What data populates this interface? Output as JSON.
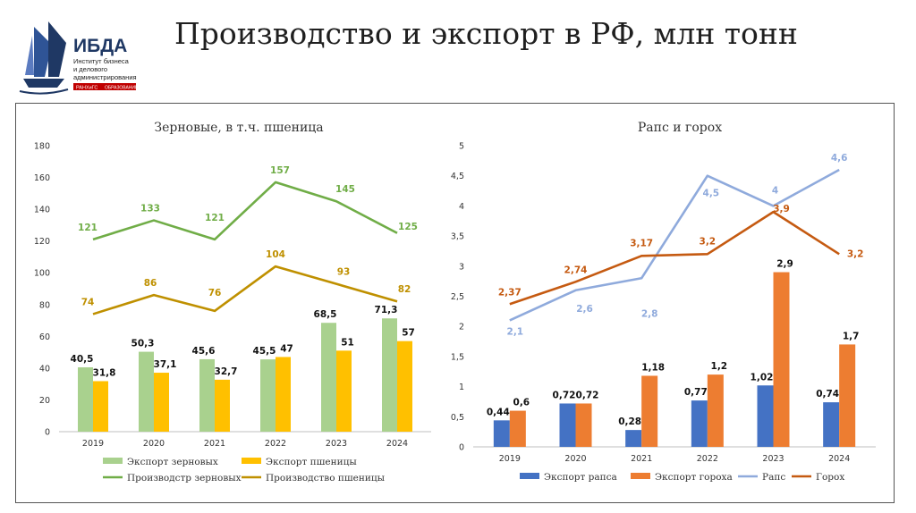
{
  "header": {
    "title": "Производство и экспорт в РФ, млн тонн",
    "logo": {
      "name": "ИБДА",
      "line1": "Институт бизнеса",
      "line2": "и делового",
      "line3": "администрирования",
      "tag1": "РАНХиГС",
      "tag2": "ОБРАЗОВАНИЕ"
    }
  },
  "colors": {
    "green_light": "#a9d18e",
    "yellow": "#ffc000",
    "green_dark": "#70ad47",
    "gold": "#bf9000",
    "blue": "#4472c4",
    "orange": "#ed7d31",
    "light_blue": "#8faadc",
    "dark_orange": "#c55a11"
  },
  "chart_data": [
    {
      "type": "bar+line",
      "title": "Зерновые, в т.ч. пшеница",
      "categories": [
        "2019",
        "2020",
        "2021",
        "2022",
        "2023",
        "2024"
      ],
      "ylim": [
        0,
        180
      ],
      "yticks": [
        0,
        20,
        40,
        60,
        80,
        100,
        120,
        140,
        160,
        180
      ],
      "bars": [
        {
          "name": "Экспорт зерновых",
          "values": [
            40.5,
            50.3,
            45.6,
            45.5,
            68.5,
            71.3
          ],
          "labels": [
            "40,5",
            "50,3",
            "45,6",
            "45,5",
            "68,5",
            "71,3"
          ],
          "color": "#a9d18e"
        },
        {
          "name": "Экспорт пшеницы",
          "values": [
            31.8,
            37.1,
            32.7,
            47,
            51,
            57
          ],
          "labels": [
            "31,8",
            "37,1",
            "32,7",
            "47",
            "51",
            "57"
          ],
          "color": "#ffc000"
        }
      ],
      "lines": [
        {
          "name": "Производстр зерновых",
          "values": [
            121,
            133,
            121,
            157,
            145,
            125
          ],
          "labels": [
            "121",
            "133",
            "121",
            "157",
            "145",
            "125"
          ],
          "color": "#70ad47"
        },
        {
          "name": "Производство пшеницы",
          "values": [
            74,
            86,
            76,
            104,
            93,
            82
          ],
          "labels": [
            "74",
            "86",
            "76",
            "104",
            "93",
            "82"
          ],
          "color": "#bf9000"
        }
      ]
    },
    {
      "type": "bar+line",
      "title": "Рапс и горох",
      "categories": [
        "2019",
        "2020",
        "2021",
        "2022",
        "2023",
        "2024"
      ],
      "ylim": [
        0,
        5
      ],
      "yticks": [
        "0",
        "0,5",
        "1",
        "1,5",
        "2",
        "2,5",
        "3",
        "3,5",
        "4",
        "4,5",
        "5"
      ],
      "bars": [
        {
          "name": "Экспорт рапса",
          "values": [
            0.44,
            0.72,
            0.28,
            0.77,
            1.02,
            0.74
          ],
          "labels": [
            "0,44",
            "0,72",
            "0,28",
            "0,77",
            "1,02",
            "0,74"
          ],
          "color": "#4472c4"
        },
        {
          "name": "Экспорт гороха",
          "values": [
            0.6,
            0.72,
            1.18,
            1.2,
            2.9,
            1.7
          ],
          "labels": [
            "0,6",
            "0,72",
            "1,18",
            "1,2",
            "2,9",
            "1,7"
          ],
          "color": "#ed7d31"
        }
      ],
      "lines": [
        {
          "name": "Рапс",
          "values": [
            2.1,
            2.6,
            2.8,
            4.5,
            4,
            4.6
          ],
          "labels": [
            "2,1",
            "2,6",
            "2,8",
            "4,5",
            "4",
            "4,6"
          ],
          "color": "#8faadc"
        },
        {
          "name": "Горох",
          "values": [
            2.37,
            2.74,
            3.17,
            3.2,
            3.9,
            3.2
          ],
          "labels": [
            "2,37",
            "2,74",
            "3,17",
            "3,2",
            "3,9",
            "3,2"
          ],
          "color": "#c55a11"
        }
      ]
    }
  ]
}
